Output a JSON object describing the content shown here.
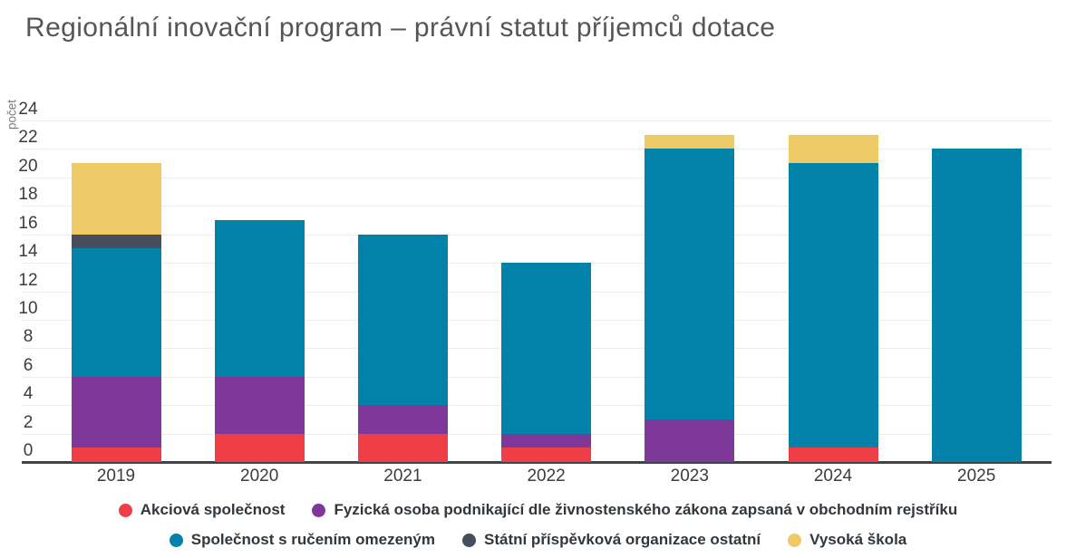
{
  "title": "Regionální inovační program – právní statut příjemců dotace",
  "colors": {
    "background": "#ffffff",
    "title_text": "#55565A",
    "axis_text": "#3C3C3C",
    "axis_line": "#3F444B",
    "gridline": "#ECECEC",
    "y_axis_title_text": "#7B7B7B",
    "legend_text": "#32373C"
  },
  "chart_data": {
    "type": "bar",
    "stacked": true,
    "title": "Regionální inovační program – právní statut příjemců dotace",
    "xlabel": "",
    "ylabel": "počet",
    "categories": [
      "2019",
      "2020",
      "2021",
      "2022",
      "2023",
      "2024",
      "2025"
    ],
    "series": [
      {
        "name": "Akciová společnost",
        "color": "#EF3E46",
        "values": [
          1,
          2,
          2,
          1,
          0,
          1,
          0
        ]
      },
      {
        "name": "Fyzická osoba podnikající dle živnostenského zákona zapsaná v obchodním rejstříku",
        "color": "#7E3899",
        "values": [
          5,
          4,
          2,
          1,
          3,
          0,
          0
        ]
      },
      {
        "name": "Společnost s ručením omezeným",
        "color": "#0382A9",
        "values": [
          9,
          11,
          12,
          12,
          19,
          20,
          22
        ]
      },
      {
        "name": "Státní příspěvková organizace ostatní",
        "color": "#474E5B",
        "values": [
          1,
          0,
          0,
          0,
          0,
          0,
          0
        ]
      },
      {
        "name": "Vysoká škola",
        "color": "#EECA67",
        "values": [
          5,
          0,
          0,
          0,
          1,
          2,
          0
        ]
      }
    ],
    "totals": [
      21,
      17,
      16,
      14,
      23,
      23,
      22
    ],
    "ylim": [
      0,
      24
    ],
    "ytick_step": 2,
    "grid": true,
    "legend_position": "bottom",
    "legend_rows": [
      [
        0,
        1
      ],
      [
        2,
        3,
        4
      ]
    ]
  }
}
